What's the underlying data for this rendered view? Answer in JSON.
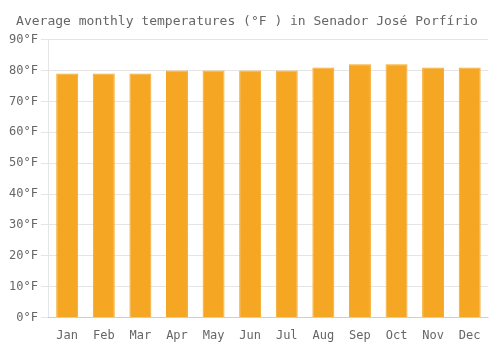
{
  "chart_data": {
    "type": "bar",
    "title": "Average monthly temperatures (°F ) in Senador José Porfírio",
    "categories": [
      "Jan",
      "Feb",
      "Mar",
      "Apr",
      "May",
      "Jun",
      "Jul",
      "Aug",
      "Sep",
      "Oct",
      "Nov",
      "Dec"
    ],
    "values": [
      79,
      79,
      79,
      80,
      80,
      80,
      80,
      81,
      82,
      82,
      81,
      81
    ],
    "color": "#F5A623",
    "ylim": [
      0,
      90
    ],
    "yticks": [
      {
        "value": 0,
        "label": "0°F"
      },
      {
        "value": 10,
        "label": "10°F"
      },
      {
        "value": 20,
        "label": "20°F"
      },
      {
        "value": 30,
        "label": "30°F"
      },
      {
        "value": 40,
        "label": "40°F"
      },
      {
        "value": 50,
        "label": "50°F"
      },
      {
        "value": 60,
        "label": "60°F"
      },
      {
        "value": 70,
        "label": "70°F"
      },
      {
        "value": 80,
        "label": "80°F"
      },
      {
        "value": 90,
        "label": "90°F"
      }
    ],
    "grid": true
  }
}
